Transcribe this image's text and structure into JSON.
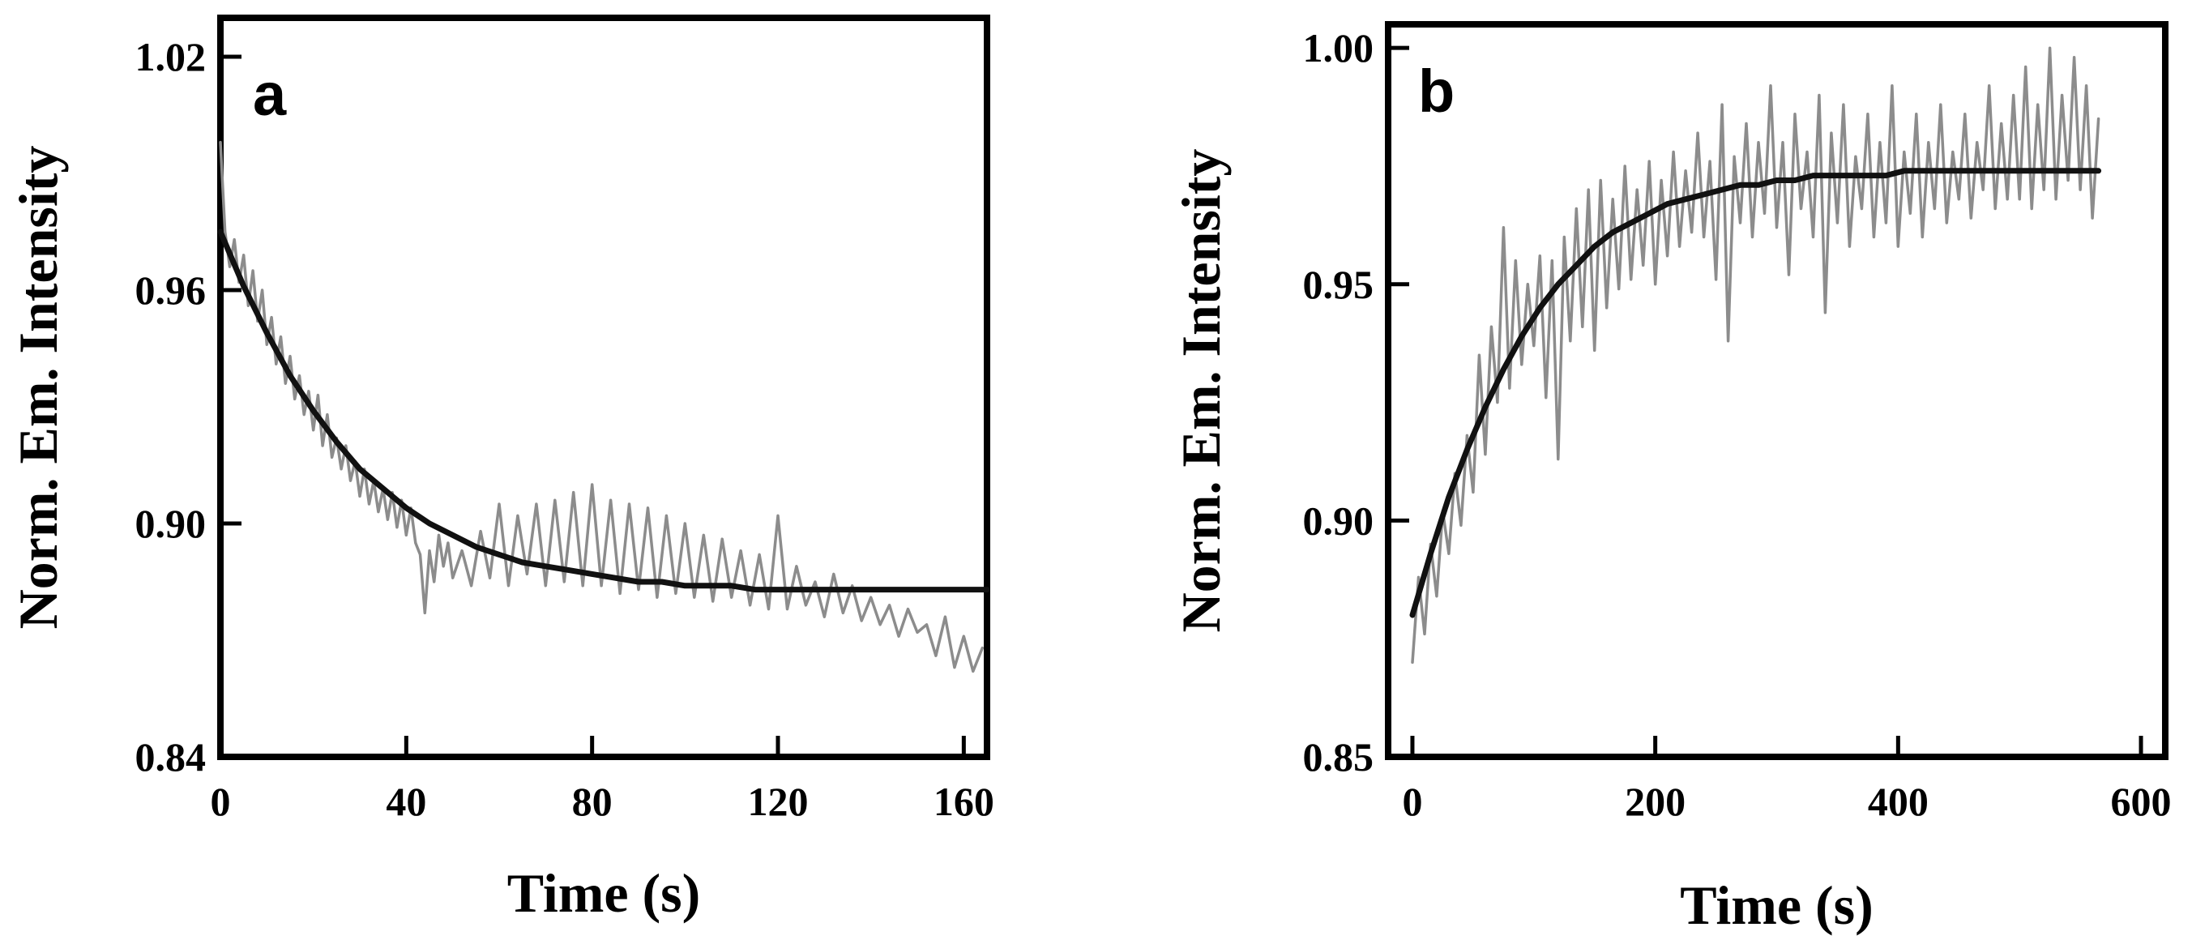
{
  "chart_data": [
    {
      "type": "line",
      "panel_label": "a",
      "xlabel": "Time (s)",
      "ylabel": "Norm. Em. Intensity",
      "xlim": [
        0,
        165
      ],
      "ylim": [
        0.84,
        1.03
      ],
      "xticks": [
        0,
        40,
        80,
        120,
        160
      ],
      "yticks": [
        0.84,
        0.9,
        0.96,
        1.02
      ],
      "xtick_labels": [
        "0",
        "40",
        "80",
        "120",
        "160"
      ],
      "ytick_labels": [
        "0.84",
        "0.90",
        "0.96",
        "1.02"
      ],
      "grid": false,
      "colors": {
        "raw": "#8c8c8c",
        "fit": "#111111"
      },
      "series": [
        {
          "role": "raw",
          "x": [
            0,
            1,
            2,
            3,
            4,
            5,
            6,
            7,
            8,
            9,
            10,
            11,
            12,
            13,
            14,
            15,
            16,
            17,
            18,
            19,
            20,
            21,
            22,
            23,
            24,
            25,
            26,
            27,
            28,
            29,
            30,
            31,
            32,
            33,
            34,
            35,
            36,
            37,
            38,
            39,
            40,
            41,
            42,
            43,
            44,
            45,
            46,
            47,
            48,
            49,
            50,
            52,
            54,
            56,
            58,
            60,
            62,
            64,
            66,
            68,
            70,
            72,
            74,
            76,
            78,
            80,
            82,
            84,
            86,
            88,
            90,
            92,
            94,
            96,
            98,
            100,
            102,
            104,
            106,
            108,
            110,
            112,
            114,
            116,
            118,
            120,
            122,
            124,
            126,
            128,
            130,
            132,
            134,
            136,
            138,
            140,
            142,
            144,
            146,
            148,
            150,
            152,
            154,
            156,
            158,
            160,
            162,
            164
          ],
          "y": [
            0.998,
            0.975,
            0.966,
            0.973,
            0.962,
            0.969,
            0.956,
            0.965,
            0.952,
            0.96,
            0.946,
            0.953,
            0.941,
            0.948,
            0.936,
            0.943,
            0.932,
            0.938,
            0.928,
            0.934,
            0.924,
            0.933,
            0.92,
            0.928,
            0.917,
            0.922,
            0.914,
            0.92,
            0.911,
            0.916,
            0.907,
            0.914,
            0.905,
            0.911,
            0.903,
            0.909,
            0.901,
            0.908,
            0.899,
            0.906,
            0.897,
            0.904,
            0.895,
            0.892,
            0.877,
            0.893,
            0.885,
            0.897,
            0.889,
            0.895,
            0.886,
            0.893,
            0.884,
            0.898,
            0.886,
            0.905,
            0.884,
            0.902,
            0.887,
            0.905,
            0.884,
            0.906,
            0.885,
            0.908,
            0.884,
            0.91,
            0.884,
            0.906,
            0.882,
            0.905,
            0.883,
            0.904,
            0.881,
            0.902,
            0.882,
            0.9,
            0.881,
            0.897,
            0.88,
            0.896,
            0.881,
            0.893,
            0.879,
            0.892,
            0.878,
            0.902,
            0.878,
            0.889,
            0.879,
            0.885,
            0.876,
            0.887,
            0.877,
            0.884,
            0.875,
            0.881,
            0.874,
            0.879,
            0.871,
            0.878,
            0.872,
            0.874,
            0.866,
            0.876,
            0.863,
            0.871,
            0.862,
            0.868
          ]
        },
        {
          "role": "fit",
          "x": [
            0,
            5,
            10,
            15,
            20,
            25,
            30,
            35,
            40,
            45,
            50,
            55,
            60,
            65,
            70,
            75,
            80,
            85,
            90,
            95,
            100,
            105,
            110,
            115,
            120,
            125,
            130,
            135,
            140,
            145,
            150,
            155,
            160,
            165
          ],
          "y": [
            0.975,
            0.961,
            0.949,
            0.938,
            0.929,
            0.921,
            0.914,
            0.909,
            0.904,
            0.9,
            0.897,
            0.894,
            0.892,
            0.89,
            0.889,
            0.888,
            0.887,
            0.886,
            0.885,
            0.885,
            0.884,
            0.884,
            0.884,
            0.883,
            0.883,
            0.883,
            0.883,
            0.883,
            0.883,
            0.883,
            0.883,
            0.883,
            0.883,
            0.883
          ]
        }
      ]
    },
    {
      "type": "line",
      "panel_label": "b",
      "xlabel": "Time (s)",
      "ylabel": "Norm. Em. Intensity",
      "xlim": [
        -20,
        620
      ],
      "ylim": [
        0.85,
        1.005
      ],
      "xticks": [
        0,
        200,
        400,
        600
      ],
      "yticks": [
        0.85,
        0.9,
        0.95,
        1.0
      ],
      "xtick_labels": [
        "0",
        "200",
        "400",
        "600"
      ],
      "ytick_labels": [
        "0.85",
        "0.90",
        "0.95",
        "1.00"
      ],
      "grid": false,
      "colors": {
        "raw": "#8c8c8c",
        "fit": "#111111"
      },
      "series": [
        {
          "role": "raw",
          "x": [
            0,
            5,
            10,
            15,
            20,
            25,
            30,
            35,
            40,
            45,
            50,
            55,
            60,
            65,
            70,
            75,
            80,
            85,
            90,
            95,
            100,
            105,
            110,
            115,
            120,
            125,
            130,
            135,
            140,
            145,
            150,
            155,
            160,
            165,
            170,
            175,
            180,
            185,
            190,
            195,
            200,
            205,
            210,
            215,
            220,
            225,
            230,
            235,
            240,
            245,
            250,
            255,
            260,
            265,
            270,
            275,
            280,
            285,
            290,
            295,
            300,
            305,
            310,
            315,
            320,
            325,
            330,
            335,
            340,
            345,
            350,
            355,
            360,
            365,
            370,
            375,
            380,
            385,
            390,
            395,
            400,
            405,
            410,
            415,
            420,
            425,
            430,
            435,
            440,
            445,
            450,
            455,
            460,
            465,
            470,
            475,
            480,
            485,
            490,
            495,
            500,
            505,
            510,
            515,
            520,
            525,
            530,
            535,
            540,
            545,
            550,
            555,
            560,
            565
          ],
          "y": [
            0.87,
            0.888,
            0.876,
            0.895,
            0.884,
            0.902,
            0.893,
            0.91,
            0.899,
            0.918,
            0.906,
            0.935,
            0.914,
            0.941,
            0.925,
            0.962,
            0.928,
            0.955,
            0.933,
            0.95,
            0.937,
            0.956,
            0.926,
            0.955,
            0.913,
            0.96,
            0.938,
            0.966,
            0.941,
            0.97,
            0.936,
            0.972,
            0.945,
            0.968,
            0.949,
            0.975,
            0.951,
            0.97,
            0.954,
            0.976,
            0.95,
            0.972,
            0.956,
            0.978,
            0.958,
            0.974,
            0.961,
            0.982,
            0.96,
            0.976,
            0.951,
            0.988,
            0.938,
            0.977,
            0.963,
            0.984,
            0.96,
            0.98,
            0.965,
            0.992,
            0.962,
            0.98,
            0.952,
            0.986,
            0.966,
            0.978,
            0.96,
            0.99,
            0.944,
            0.982,
            0.963,
            0.988,
            0.958,
            0.977,
            0.966,
            0.986,
            0.96,
            0.98,
            0.963,
            0.992,
            0.958,
            0.978,
            0.965,
            0.986,
            0.96,
            0.98,
            0.966,
            0.988,
            0.963,
            0.978,
            0.968,
            0.986,
            0.964,
            0.98,
            0.97,
            0.992,
            0.966,
            0.984,
            0.968,
            0.99,
            0.968,
            0.996,
            0.966,
            0.988,
            0.97,
            1.0,
            0.968,
            0.99,
            0.972,
            0.998,
            0.97,
            0.992,
            0.964,
            0.985
          ]
        },
        {
          "role": "fit",
          "x": [
            0,
            15,
            30,
            45,
            60,
            75,
            90,
            105,
            120,
            135,
            150,
            165,
            180,
            195,
            210,
            225,
            240,
            255,
            270,
            285,
            300,
            315,
            330,
            345,
            360,
            375,
            390,
            405,
            420,
            435,
            450,
            465,
            480,
            495,
            510,
            525,
            540,
            555,
            565
          ],
          "y": [
            0.88,
            0.893,
            0.905,
            0.915,
            0.924,
            0.932,
            0.939,
            0.945,
            0.95,
            0.954,
            0.958,
            0.961,
            0.963,
            0.965,
            0.967,
            0.968,
            0.969,
            0.97,
            0.971,
            0.971,
            0.972,
            0.972,
            0.973,
            0.973,
            0.973,
            0.973,
            0.973,
            0.974,
            0.974,
            0.974,
            0.974,
            0.974,
            0.974,
            0.974,
            0.974,
            0.974,
            0.974,
            0.974,
            0.974
          ]
        }
      ]
    }
  ]
}
